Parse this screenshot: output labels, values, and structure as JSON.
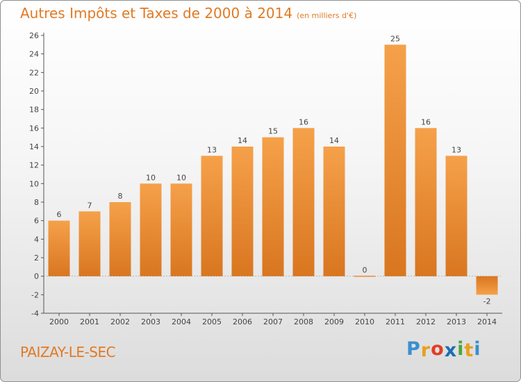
{
  "title": "Autres Impôts et Taxes de 2000 à 2014",
  "unit_note": "(en milliers d'€)",
  "town": "PAIZAY-LE-SEC",
  "logo": {
    "letters": [
      "P",
      "r",
      "o",
      "x",
      "i",
      "t",
      "i"
    ],
    "colors": [
      "#3a8fd0",
      "#e8a020",
      "#e23c24",
      "#1b6cb5",
      "#4aa838",
      "#e8a020",
      "#3a8fd0"
    ]
  },
  "colors": {
    "bar_top": "#f5a14a",
    "bar_bottom": "#d97620",
    "axis": "#555555",
    "grid": "#d9d9d9",
    "text": "#444444"
  },
  "chart_data": {
    "type": "bar",
    "categories": [
      "2000",
      "2001",
      "2002",
      "2003",
      "2004",
      "2005",
      "2006",
      "2007",
      "2008",
      "2009",
      "2010",
      "2011",
      "2012",
      "2013",
      "2014"
    ],
    "values": [
      6,
      7,
      8,
      10,
      10,
      13,
      14,
      15,
      16,
      14,
      0,
      25,
      16,
      13,
      -2
    ],
    "data_labels": [
      "6",
      "7",
      "8",
      "10",
      "10",
      "13",
      "14",
      "15",
      "16",
      "14",
      "0",
      "25",
      "16",
      "13",
      "-2"
    ],
    "yticks": [
      "-4",
      "-2",
      "0",
      "2",
      "4",
      "6",
      "8",
      "10",
      "12",
      "14",
      "16",
      "18",
      "20",
      "22",
      "24",
      "26"
    ],
    "ylim": [
      -4,
      26
    ],
    "grid": false,
    "legend": "none"
  }
}
